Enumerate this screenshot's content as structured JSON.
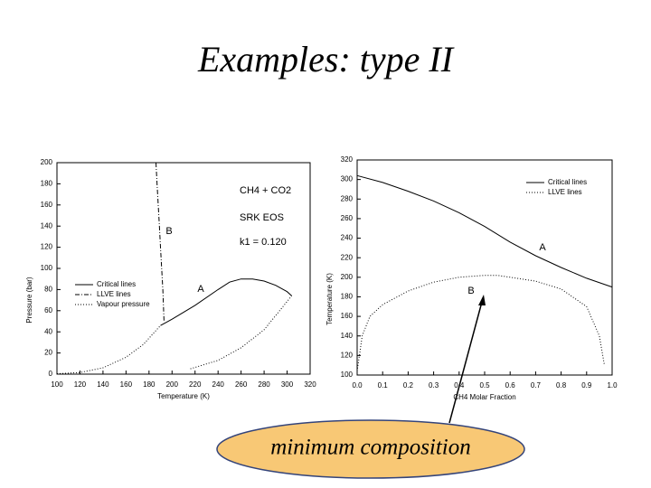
{
  "title": "Examples: type II",
  "callout": "minimum composition",
  "chart_data": [
    {
      "type": "line",
      "xlabel": "Temperature (K)",
      "ylabel": "Pressure (bar)",
      "xlim": [
        100,
        320
      ],
      "xticks": [
        100,
        120,
        140,
        160,
        180,
        200,
        220,
        240,
        260,
        280,
        300,
        320
      ],
      "ylim": [
        0,
        200
      ],
      "yticks": [
        0,
        20,
        40,
        60,
        80,
        100,
        120,
        140,
        160,
        180,
        200
      ],
      "legend": "center left",
      "annotations": [
        "CH4 + CO2",
        "SRK EOS",
        "k1 = 0.120",
        "A",
        "B"
      ],
      "series": [
        {
          "name": "Critical lines",
          "style": "solid",
          "color": "#000000",
          "x": [
            190,
            200,
            220,
            240,
            250,
            260,
            270,
            280,
            290,
            300,
            304
          ],
          "values": [
            46,
            52,
            65,
            80,
            87,
            90,
            90,
            88,
            84,
            78,
            74
          ]
        },
        {
          "name": "LLVE lines",
          "style": "dashdot",
          "color": "#000000",
          "x": [
            186,
            187,
            188,
            189,
            190,
            191,
            192,
            193
          ],
          "values": [
            200,
            180,
            160,
            140,
            120,
            100,
            80,
            50
          ]
        },
        {
          "name": "Vapour pressure",
          "style": "dotted",
          "color": "#000000",
          "x": [
            100,
            120,
            140,
            160,
            175,
            190,
            null,
            216,
            240,
            260,
            280,
            304
          ],
          "values": [
            0.3,
            1.5,
            6,
            16,
            28,
            46,
            null,
            5,
            13,
            25,
            42,
            74
          ]
        }
      ]
    },
    {
      "type": "line",
      "xlabel": "CH4 Molar Fraction",
      "ylabel": "Temperature (K)",
      "xlim": [
        0,
        1
      ],
      "xticks": [
        {
          "value": 0,
          "label": "0.0"
        },
        0.1,
        0.2,
        0.3,
        0.4,
        0.5,
        0.6,
        0.7,
        0.8,
        0.9,
        {
          "value": 1,
          "label": "1.0"
        }
      ],
      "ylim": [
        100,
        320
      ],
      "yticks": [
        100,
        120,
        140,
        160,
        180,
        200,
        220,
        240,
        260,
        280,
        300,
        320
      ],
      "legend": "upper right",
      "annotations": [
        "A",
        "B"
      ],
      "series": [
        {
          "name": "Critical lines",
          "style": "solid",
          "color": "#000000",
          "x": [
            0,
            0.1,
            0.2,
            0.3,
            0.4,
            0.5,
            0.6,
            0.7,
            0.8,
            0.9,
            1
          ],
          "values": [
            304,
            297,
            288,
            278,
            266,
            252,
            236,
            222,
            210,
            199,
            190
          ]
        },
        {
          "name": "LLVE lines",
          "style": "dotted",
          "color": "#000000",
          "x": [
            0,
            0.02,
            0.05,
            0.1,
            0.2,
            0.3,
            0.4,
            0.5,
            0.55,
            0.6,
            0.7,
            0.8,
            0.9,
            0.95,
            0.97
          ],
          "values": [
            104,
            140,
            160,
            172,
            186,
            195,
            200,
            202,
            202,
            200,
            196,
            188,
            170,
            140,
            110
          ]
        }
      ]
    }
  ]
}
